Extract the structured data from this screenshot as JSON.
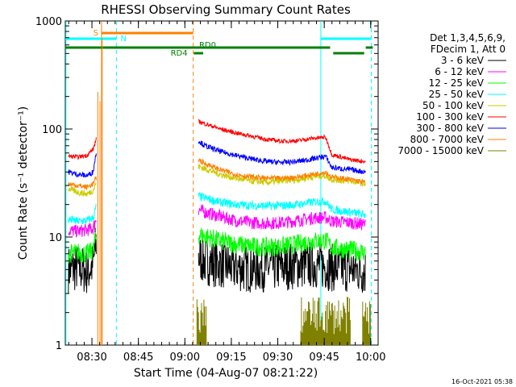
{
  "chart_data": {
    "type": "line",
    "title": "RHESSI Observing Summary Count Rates",
    "xlabel": "Start Time (04-Aug-07 08:21:22)",
    "ylabel": "Count Rate (s⁻¹ detector⁻¹)",
    "yscale": "log",
    "ylim": [
      1,
      1000
    ],
    "xlim_minutes": [
      0,
      101
    ],
    "x_unit": "minutes after 08:21:22",
    "x_ticks": [
      {
        "label": "08:30",
        "t": 8.6
      },
      {
        "label": "08:45",
        "t": 23.6
      },
      {
        "label": "09:00",
        "t": 38.6
      },
      {
        "label": "09:15",
        "t": 53.6
      },
      {
        "label": "09:30",
        "t": 68.6
      },
      {
        "label": "09:45",
        "t": 83.6
      },
      {
        "label": "10:00",
        "t": 98.6
      }
    ],
    "y_ticks": [
      {
        "label": "1",
        "v": 1
      },
      {
        "label": "10",
        "v": 10
      },
      {
        "label": "100",
        "v": 100
      },
      {
        "label": "1000",
        "v": 1000
      }
    ],
    "legend": {
      "header": [
        "Det 1,3,4,5,6,9,",
        "FDecim 1, Att 0"
      ],
      "placement": "right"
    },
    "series": [
      {
        "name": "3 - 6 keV",
        "color": "#000000",
        "pre": [
          [
            1,
            5
          ],
          [
            4,
            5.2
          ],
          [
            7,
            4.8
          ],
          [
            9,
            5.5
          ],
          [
            10,
            9
          ]
        ],
        "post": [
          [
            43,
            6.5
          ],
          [
            45,
            6
          ],
          [
            50,
            5.6
          ],
          [
            55,
            5.2
          ],
          [
            60,
            5.1
          ],
          [
            65,
            5.2
          ],
          [
            70,
            5.3
          ],
          [
            75,
            5.5
          ],
          [
            80,
            5.6
          ],
          [
            84,
            5.4
          ],
          [
            86,
            5.2
          ],
          [
            92,
            5.1
          ],
          [
            97,
            4.8
          ]
        ],
        "noise": 0.45
      },
      {
        "name": "6 - 12 keV",
        "color": "#ff00ff",
        "pre": [
          [
            1,
            11.5
          ],
          [
            4,
            11.3
          ],
          [
            7,
            11.6
          ],
          [
            9,
            12
          ],
          [
            10,
            15
          ]
        ],
        "post": [
          [
            43,
            18
          ],
          [
            45,
            17
          ],
          [
            50,
            15.5
          ],
          [
            55,
            14.2
          ],
          [
            60,
            13.6
          ],
          [
            65,
            13.4
          ],
          [
            70,
            13.6
          ],
          [
            75,
            14.2
          ],
          [
            80,
            15
          ],
          [
            84,
            15.2
          ],
          [
            86,
            14
          ],
          [
            92,
            13.6
          ],
          [
            97,
            13
          ]
        ],
        "noise": 0.12
      },
      {
        "name": "12 - 25 keV",
        "color": "#00ff00",
        "pre": [
          [
            1,
            7
          ],
          [
            4,
            7.2
          ],
          [
            7,
            7
          ],
          [
            9,
            7.5
          ],
          [
            10,
            10
          ]
        ],
        "post": [
          [
            43,
            10.5
          ],
          [
            45,
            10.2
          ],
          [
            50,
            9.2
          ],
          [
            55,
            8.6
          ],
          [
            60,
            8.2
          ],
          [
            65,
            8.1
          ],
          [
            70,
            8.2
          ],
          [
            75,
            8.6
          ],
          [
            80,
            9.2
          ],
          [
            84,
            9.3
          ],
          [
            86,
            8
          ],
          [
            92,
            7.6
          ],
          [
            97,
            7.2
          ]
        ],
        "noise": 0.18
      },
      {
        "name": "25 - 50 keV",
        "color": "#00ffff",
        "pre": [
          [
            1,
            14.5
          ],
          [
            4,
            14
          ],
          [
            7,
            14.2
          ],
          [
            9,
            15
          ],
          [
            10,
            19
          ]
        ],
        "post": [
          [
            43,
            24
          ],
          [
            45,
            23
          ],
          [
            50,
            21
          ],
          [
            55,
            20
          ],
          [
            60,
            19.6
          ],
          [
            65,
            19.4
          ],
          [
            70,
            19.5
          ],
          [
            75,
            20
          ],
          [
            80,
            21
          ],
          [
            84,
            21.5
          ],
          [
            86,
            18
          ],
          [
            92,
            17
          ],
          [
            97,
            16
          ]
        ],
        "noise": 0.08
      },
      {
        "name": "50 - 100 keV",
        "color": "#cccc00",
        "pre": [
          [
            1,
            28
          ],
          [
            4,
            26
          ],
          [
            7,
            25
          ],
          [
            9,
            27
          ],
          [
            10,
            32
          ]
        ],
        "post": [
          [
            43,
            45
          ],
          [
            45,
            43
          ],
          [
            50,
            38
          ],
          [
            55,
            35
          ],
          [
            60,
            33
          ],
          [
            65,
            32
          ],
          [
            70,
            33
          ],
          [
            75,
            34
          ],
          [
            80,
            36
          ],
          [
            84,
            37
          ],
          [
            86,
            34
          ],
          [
            92,
            33
          ],
          [
            97,
            31
          ]
        ],
        "noise": 0.06
      },
      {
        "name": "100 - 300 keV",
        "color": "#ff0000",
        "pre": [
          [
            1,
            56
          ],
          [
            4,
            55
          ],
          [
            7,
            57
          ],
          [
            9,
            65
          ],
          [
            10,
            80
          ]
        ],
        "post": [
          [
            43,
            118
          ],
          [
            45,
            112
          ],
          [
            50,
            100
          ],
          [
            55,
            92
          ],
          [
            60,
            86
          ],
          [
            65,
            80
          ],
          [
            70,
            77
          ],
          [
            75,
            78
          ],
          [
            80,
            82
          ],
          [
            84,
            84
          ],
          [
            86,
            58
          ],
          [
            92,
            52
          ],
          [
            97,
            50
          ]
        ],
        "noise": 0.04
      },
      {
        "name": "300 - 800 keV",
        "color": "#0000ff",
        "pre": [
          [
            1,
            40
          ],
          [
            4,
            38
          ],
          [
            7,
            37
          ],
          [
            9,
            40
          ],
          [
            10,
            60
          ]
        ],
        "post": [
          [
            43,
            78
          ],
          [
            45,
            70
          ],
          [
            50,
            62
          ],
          [
            55,
            57
          ],
          [
            60,
            53
          ],
          [
            65,
            50
          ],
          [
            70,
            49
          ],
          [
            75,
            50
          ],
          [
            80,
            53
          ],
          [
            84,
            56
          ],
          [
            86,
            44
          ],
          [
            92,
            42
          ],
          [
            97,
            40
          ]
        ],
        "noise": 0.05
      },
      {
        "name": "800 - 7000 keV",
        "color": "#ff8000",
        "pre": [
          [
            1,
            31
          ],
          [
            4,
            30
          ],
          [
            7,
            29
          ],
          [
            9,
            31
          ],
          [
            10,
            35
          ]
        ],
        "post": [
          [
            43,
            52
          ],
          [
            45,
            48
          ],
          [
            50,
            42
          ],
          [
            55,
            38
          ],
          [
            60,
            36
          ],
          [
            65,
            35
          ],
          [
            70,
            35
          ],
          [
            75,
            36
          ],
          [
            80,
            38
          ],
          [
            84,
            40
          ],
          [
            86,
            36
          ],
          [
            92,
            34
          ],
          [
            97,
            32
          ]
        ],
        "noise": 0.05
      },
      {
        "name": "7000 - 15000 keV",
        "color": "#808000",
        "pre": [],
        "post": [],
        "noise": 0
      }
    ],
    "markers": [
      {
        "name": "S",
        "color": "#ff8000",
        "start": 11.7,
        "end": 41.3,
        "level": 1
      },
      {
        "name": "N",
        "color": "#00ffff",
        "start": 0,
        "end": 16.5,
        "level": 2
      },
      {
        "name": "N",
        "color": "#00ffff",
        "start": 82.5,
        "end": 98.8,
        "level": 2
      },
      {
        "name": "RD0",
        "color": "#008000",
        "start": 0,
        "end": 85.5,
        "level": 3
      },
      {
        "name": "RD0",
        "color": "#008000",
        "start": 97,
        "end": 99.3,
        "level": 3
      },
      {
        "name": "RD4",
        "color": "#008000",
        "start": 41.5,
        "end": 44.5,
        "level": 4
      },
      {
        "name": "RD4",
        "color": "#008000",
        "start": 86.5,
        "end": 96.5,
        "level": 4
      }
    ],
    "marker_labels": [
      {
        "text": "S",
        "color": "#ff8000",
        "t": 9.0,
        "level": 1
      },
      {
        "text": "N",
        "color": "#00ffff",
        "t": 17.8,
        "level": 2
      },
      {
        "text": "RD0",
        "color": "#008000",
        "t": 43.2,
        "level": 3
      },
      {
        "text": "RD4",
        "color": "#008000",
        "t": 34.0,
        "level": 4
      }
    ],
    "vlines": [
      {
        "t": 0.2,
        "color": "#00ffff",
        "dashed": false
      },
      {
        "t": 16.5,
        "color": "#00ffff",
        "dashed": true
      },
      {
        "t": 11.7,
        "color": "#ff8000",
        "dashed": false
      },
      {
        "t": 41.3,
        "color": "#ff8000",
        "dashed": true
      },
      {
        "t": 82.5,
        "color": "#00ffff",
        "dashed": false
      },
      {
        "t": 98.8,
        "color": "#00ffff",
        "dashed": true
      }
    ],
    "attenuator_spikes": [
      {
        "t": 10.5,
        "from": 1,
        "to": 220
      },
      {
        "t": 11.2,
        "from": 1,
        "to": 180
      },
      {
        "t": 11.9,
        "from": 1,
        "to": 700
      }
    ],
    "low_band": {
      "color": "#808000",
      "ranges": [
        [
          42.5,
          45.5
        ],
        [
          76,
          92
        ],
        [
          96,
          98.5
        ]
      ],
      "level": 1.6,
      "noise": 0.35
    }
  },
  "timestamp": "16-Oct-2021 05:38"
}
